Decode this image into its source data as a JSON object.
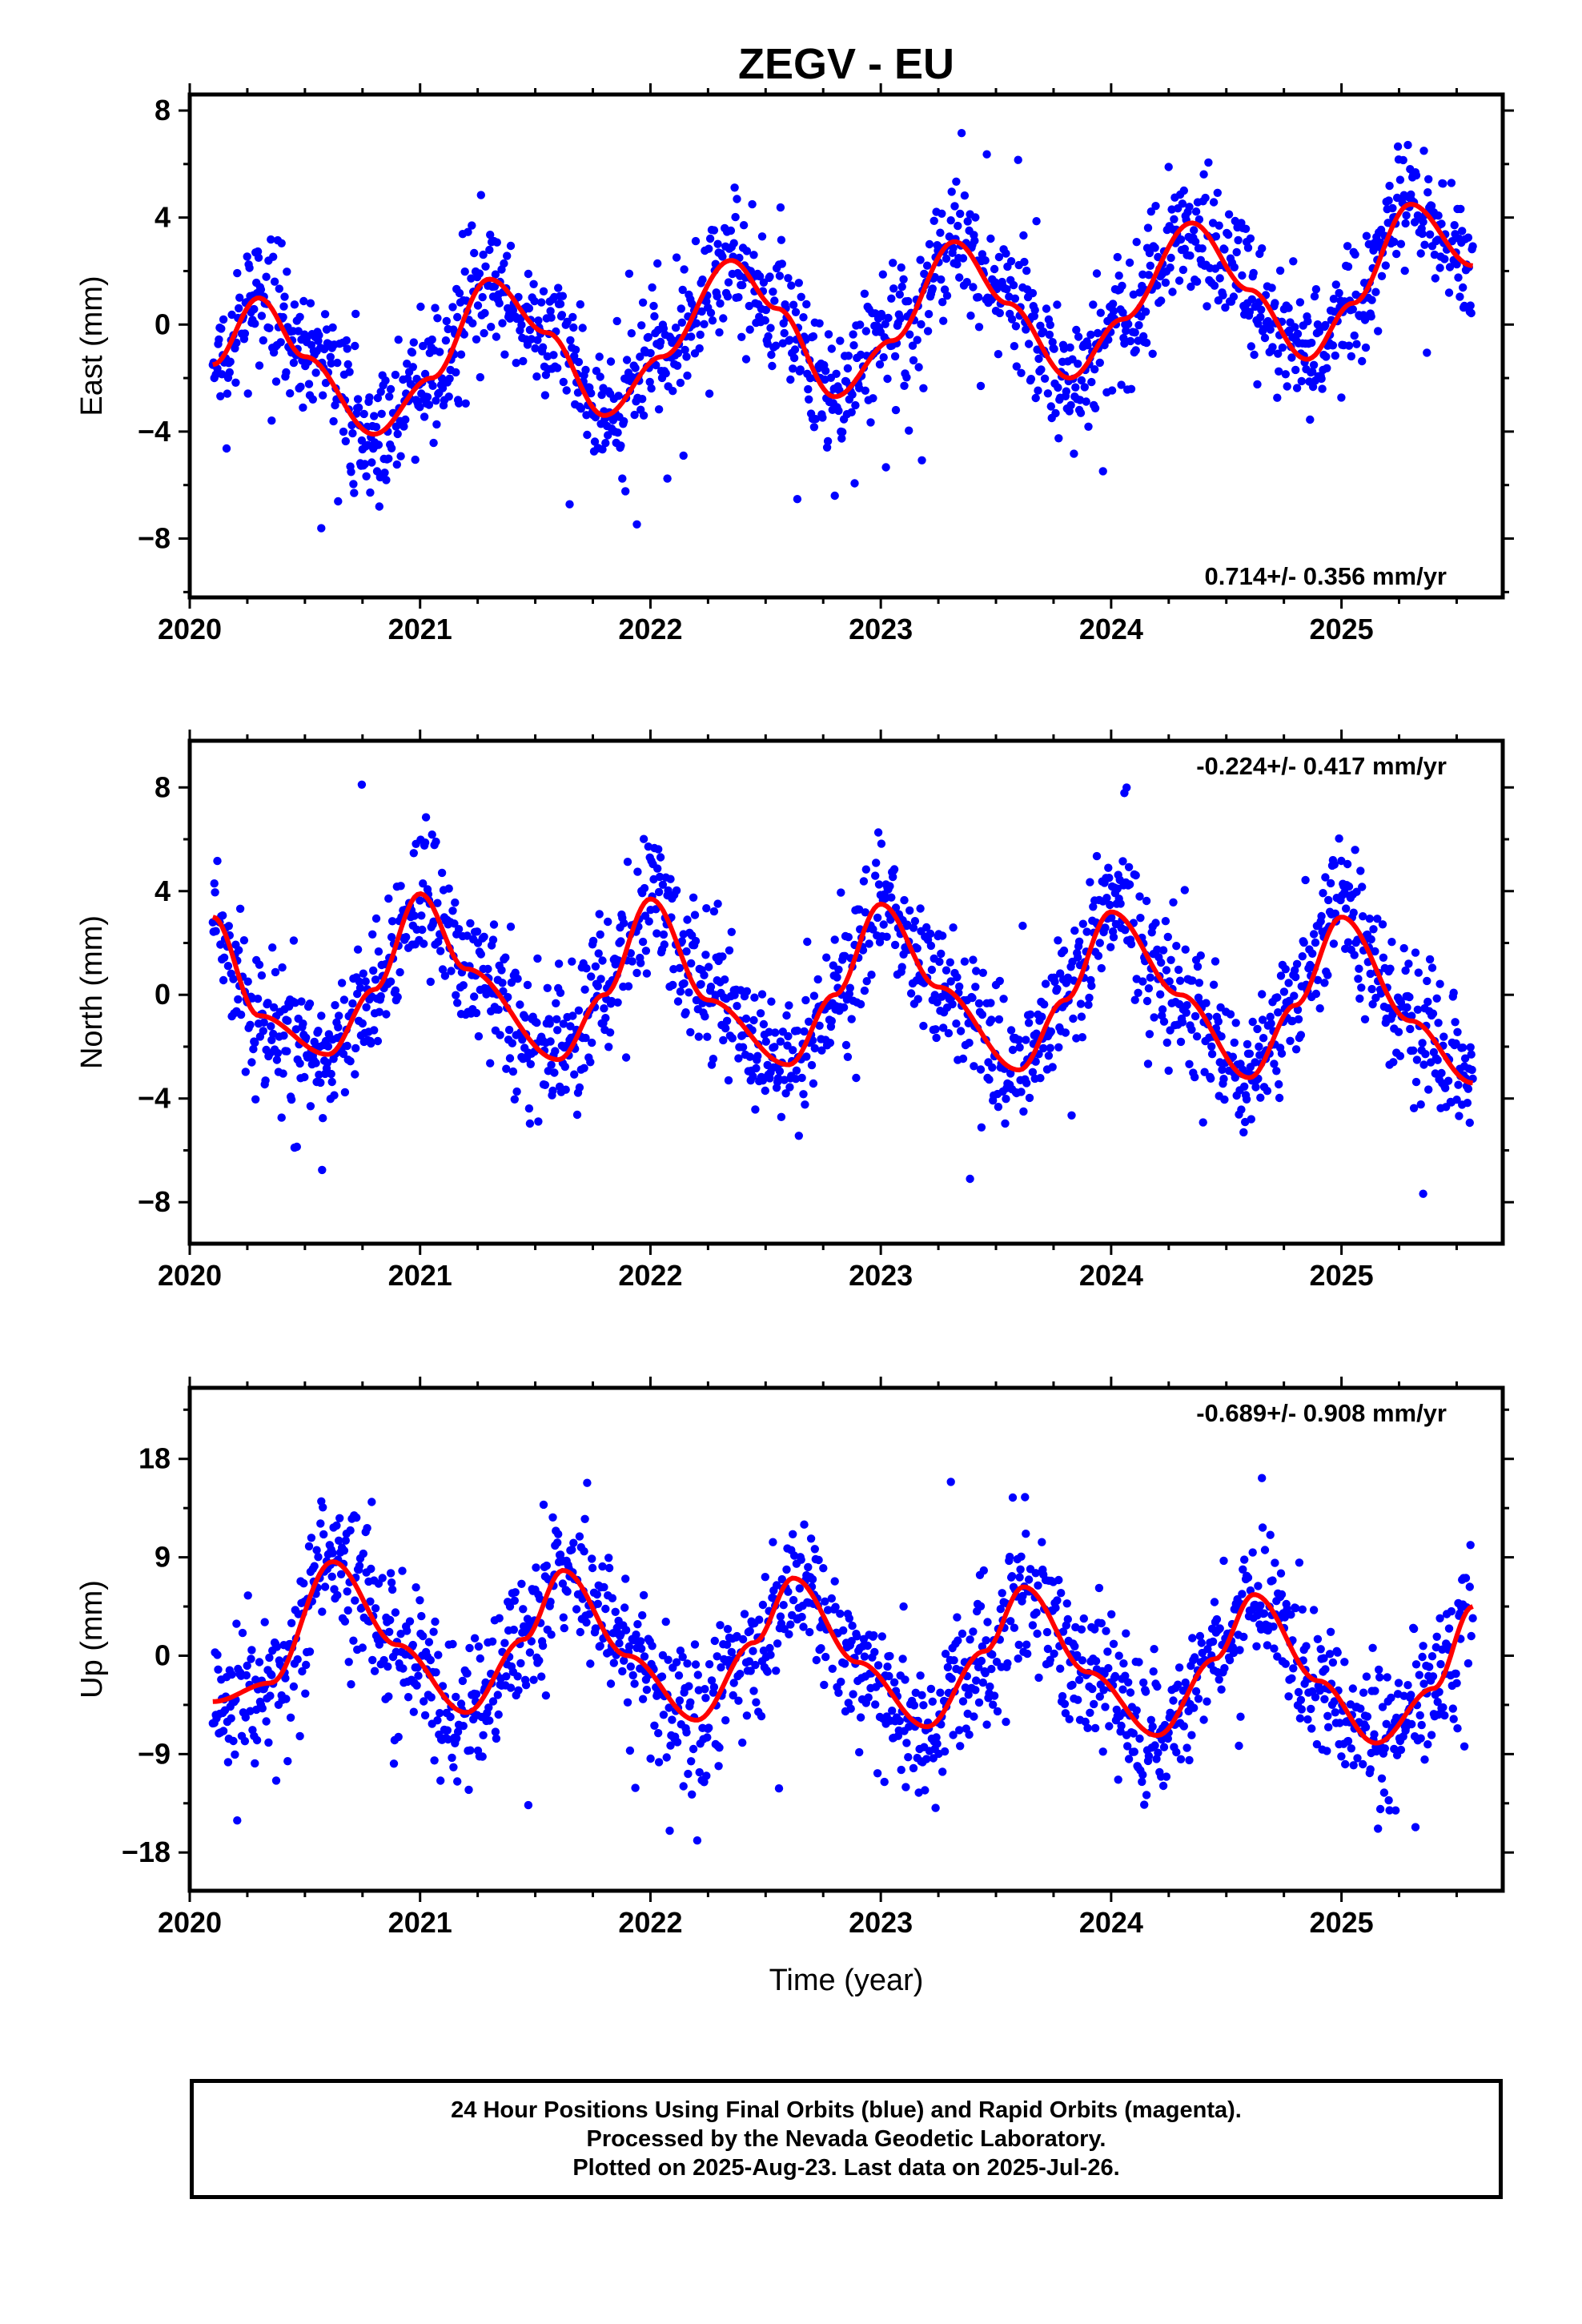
{
  "title": "ZEGV - EU",
  "colors": {
    "points": "#0000ff",
    "fit": "#ff0000",
    "frame": "#000000"
  },
  "footer": {
    "line1": "24 Hour Positions Using Final Orbits (blue) and Rapid Orbits (magenta).",
    "line2": "Processed by the Nevada Geodetic Laboratory.",
    "line3": "Plotted on 2025-Aug-23. Last data on 2025-Jul-26."
  },
  "chart_data": [
    {
      "type": "scatter",
      "title": "ZEGV - EU",
      "xlabel": "",
      "ylabel": "East (mm)",
      "xlim": [
        2020,
        2025.7
      ],
      "ylim": [
        -10.2,
        8.6
      ],
      "xticks": [
        2020,
        2021,
        2022,
        2023,
        2024,
        2025
      ],
      "yticks": [
        -8,
        -4,
        0,
        4,
        8
      ],
      "ytick_labels": [
        "−8",
        "−4",
        "0",
        "4",
        "8"
      ],
      "rate_label": "0.714+/- 0.356 mm/yr",
      "rate_position": "bottom-right",
      "x_start": 2020.1,
      "x_end": 2025.57,
      "fit_curve_samples": [
        [
          2020.1,
          -1.5
        ],
        [
          2020.3,
          1.0
        ],
        [
          2020.5,
          -1.2
        ],
        [
          2020.8,
          -4.1
        ],
        [
          2021.05,
          -2.0
        ],
        [
          2021.3,
          1.7
        ],
        [
          2021.55,
          -0.3
        ],
        [
          2021.8,
          -3.4
        ],
        [
          2022.05,
          -1.2
        ],
        [
          2022.35,
          2.4
        ],
        [
          2022.55,
          0.6
        ],
        [
          2022.8,
          -2.7
        ],
        [
          2023.05,
          -0.6
        ],
        [
          2023.32,
          3.1
        ],
        [
          2023.55,
          0.8
        ],
        [
          2023.82,
          -2.0
        ],
        [
          2024.05,
          0.2
        ],
        [
          2024.35,
          3.8
        ],
        [
          2024.6,
          1.3
        ],
        [
          2024.85,
          -1.3
        ],
        [
          2025.05,
          0.8
        ],
        [
          2025.3,
          4.5
        ],
        [
          2025.57,
          2.2
        ]
      ],
      "point_model": {
        "amplitude": 2.8,
        "noise_sd": 1.2,
        "outlier_rate": 0.03
      }
    },
    {
      "type": "scatter",
      "xlabel": "",
      "ylabel": "North (mm)",
      "xlim": [
        2020,
        2025.7
      ],
      "ylim": [
        -9.6,
        9.8
      ],
      "xticks": [
        2020,
        2021,
        2022,
        2023,
        2024,
        2025
      ],
      "yticks": [
        -8,
        -4,
        0,
        4,
        8
      ],
      "ytick_labels": [
        "−8",
        "−4",
        "0",
        "4",
        "8"
      ],
      "rate_label": "-0.224+/- 0.417 mm/yr",
      "rate_position": "top-right",
      "x_start": 2020.1,
      "x_end": 2025.57,
      "fit_curve_samples": [
        [
          2020.1,
          3.0
        ],
        [
          2020.3,
          -0.8
        ],
        [
          2020.6,
          -2.3
        ],
        [
          2020.8,
          0.2
        ],
        [
          2021.0,
          3.9
        ],
        [
          2021.2,
          1.0
        ],
        [
          2021.6,
          -2.5
        ],
        [
          2021.8,
          0.0
        ],
        [
          2022.0,
          3.7
        ],
        [
          2022.25,
          -0.2
        ],
        [
          2022.6,
          -2.7
        ],
        [
          2022.8,
          0.0
        ],
        [
          2023.0,
          3.5
        ],
        [
          2023.25,
          0.3
        ],
        [
          2023.6,
          -2.9
        ],
        [
          2023.8,
          -0.2
        ],
        [
          2024.0,
          3.2
        ],
        [
          2024.3,
          0.0
        ],
        [
          2024.6,
          -3.2
        ],
        [
          2024.8,
          -0.4
        ],
        [
          2025.0,
          3.0
        ],
        [
          2025.3,
          -1.0
        ],
        [
          2025.57,
          -3.4
        ]
      ],
      "point_model": {
        "amplitude": 3.5,
        "noise_sd": 1.3,
        "outlier_rate": 0.03
      }
    },
    {
      "type": "scatter",
      "xlabel": "Time (year)",
      "ylabel": "Up (mm)",
      "xlim": [
        2020,
        2025.7
      ],
      "ylim": [
        -21.5,
        24.5
      ],
      "xticks": [
        2020,
        2021,
        2022,
        2023,
        2024,
        2025
      ],
      "yticks": [
        -18,
        -9,
        0,
        9,
        18
      ],
      "ytick_labels": [
        "−18",
        "−9",
        "0",
        "9",
        "18"
      ],
      "rate_label": "-0.689+/- 0.908 mm/yr",
      "rate_position": "top-right",
      "x_start": 2020.1,
      "x_end": 2025.57,
      "fit_curve_samples": [
        [
          2020.1,
          -4.2
        ],
        [
          2020.35,
          -2.5
        ],
        [
          2020.62,
          8.6
        ],
        [
          2020.9,
          1.0
        ],
        [
          2021.2,
          -5.2
        ],
        [
          2021.45,
          1.5
        ],
        [
          2021.62,
          7.8
        ],
        [
          2021.9,
          0.0
        ],
        [
          2022.2,
          -5.9
        ],
        [
          2022.45,
          1.2
        ],
        [
          2022.62,
          7.1
        ],
        [
          2022.9,
          -0.6
        ],
        [
          2023.2,
          -6.5
        ],
        [
          2023.45,
          0.4
        ],
        [
          2023.62,
          6.3
        ],
        [
          2023.9,
          -1.5
        ],
        [
          2024.2,
          -7.3
        ],
        [
          2024.45,
          -0.3
        ],
        [
          2024.62,
          5.6
        ],
        [
          2024.9,
          -2.3
        ],
        [
          2025.15,
          -8.0
        ],
        [
          2025.4,
          -3.0
        ],
        [
          2025.57,
          4.5
        ]
      ],
      "point_model": {
        "amplitude": 7,
        "noise_sd": 3.2,
        "outlier_rate": 0.04
      }
    }
  ]
}
